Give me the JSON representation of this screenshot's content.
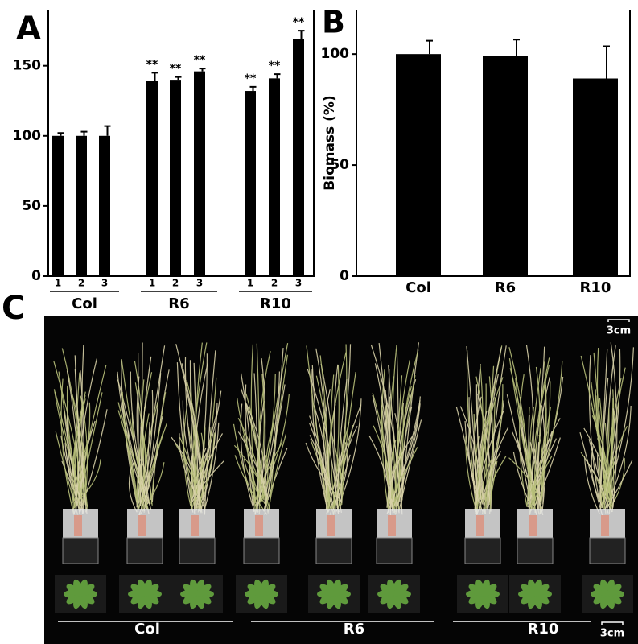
{
  "chart_data": [
    {
      "type": "bar",
      "panel_label": "A",
      "categories": [
        "1",
        "2",
        "3",
        "1",
        "2",
        "3",
        "1",
        "2",
        "3"
      ],
      "groups": [
        "Col",
        "R6",
        "R10"
      ],
      "values": [
        100,
        100,
        100,
        139,
        140,
        146,
        132,
        141,
        169
      ],
      "errors": [
        2,
        3,
        7,
        6,
        2,
        2,
        3,
        3,
        6
      ],
      "annotations": [
        null,
        null,
        null,
        "**",
        "**",
        "**",
        "**",
        "**",
        "**"
      ],
      "color": "#000000",
      "ylim": [
        0,
        190
      ],
      "yticks": [
        0,
        50,
        100,
        150
      ]
    },
    {
      "type": "bar",
      "panel_label": "B",
      "ylabel": "Biomass (%)",
      "categories": [
        "Col",
        "R6",
        "R10"
      ],
      "values": [
        100,
        99,
        89
      ],
      "errors": [
        6,
        7.5,
        14.5
      ],
      "color": "#000000",
      "ylim": [
        0,
        120
      ],
      "yticks": [
        0,
        50,
        100
      ]
    }
  ],
  "photo": {
    "panel_label": "C",
    "groups": [
      "Col",
      "R6",
      "R10"
    ],
    "scale_bars": [
      "3cm",
      "3cm"
    ]
  }
}
